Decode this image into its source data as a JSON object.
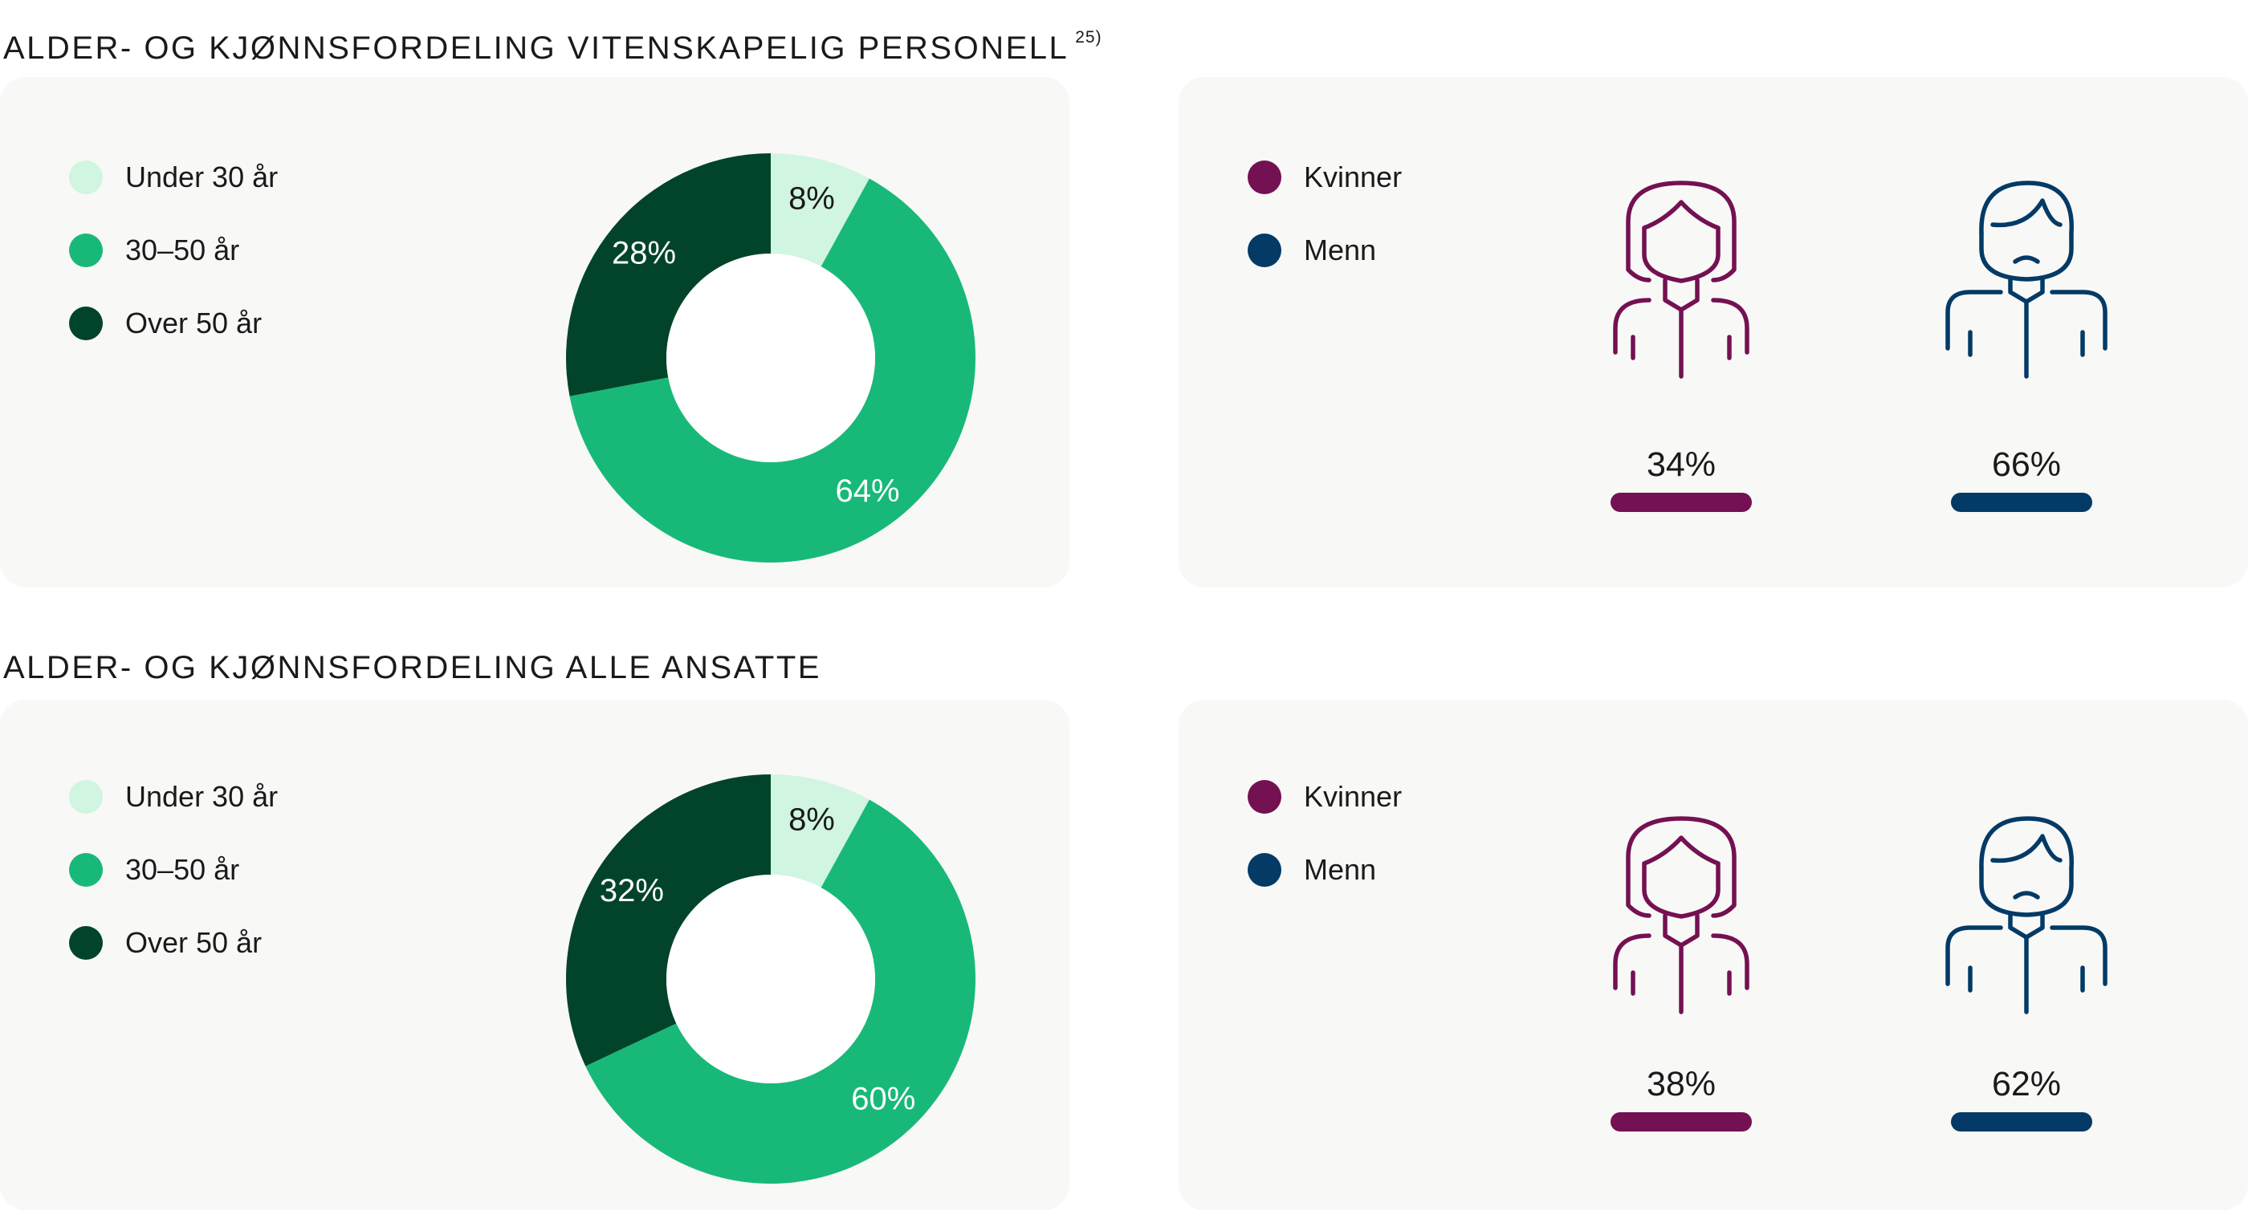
{
  "colors": {
    "under30": "#d0f5e0",
    "age30_50": "#18b978",
    "over50": "#02442a",
    "women": "#741152",
    "men": "#033a66",
    "panel": "#f8f8f7",
    "hole": "#ffffff",
    "dark_text": "#1a1a1a",
    "light_text": "#ffffff"
  },
  "legend_age": [
    "Under 30 år",
    "30–50 år",
    "Over 50 år"
  ],
  "legend_gender": [
    "Kvinner",
    "Menn"
  ],
  "icons": {
    "women": "woman-icon",
    "men": "man-icon"
  },
  "sections": [
    {
      "title": "ALDER- OG KJØNNSFORDELING VITENSKAPELIG PERSONELL",
      "footnote": "25)",
      "labels": {
        "under30": "8%",
        "age30_50": "64%",
        "over50": "28%"
      },
      "women_label": "34%",
      "men_label": "66%"
    },
    {
      "title": "ALDER- OG KJØNNSFORDELING ALLE ANSATTE",
      "footnote": "",
      "labels": {
        "under30": "8%",
        "age30_50": "60%",
        "over50": "32%"
      },
      "women_label": "38%",
      "men_label": "62%"
    }
  ],
  "chart_data": [
    {
      "type": "pie",
      "title": "ALDER- OG KJØNNSFORDELING VITENSKAPELIG PERSONELL",
      "donut": true,
      "categories": [
        "Under 30 år",
        "30–50 år",
        "Over 50 år"
      ],
      "values": [
        8,
        64,
        28
      ],
      "colors": [
        "#d0f5e0",
        "#18b978",
        "#02442a"
      ],
      "legend": "left"
    },
    {
      "type": "bar",
      "title": "ALDER- OG KJØNNSFORDELING VITENSKAPELIG PERSONELL",
      "categories": [
        "Kvinner",
        "Menn"
      ],
      "values": [
        34,
        66
      ],
      "colors": [
        "#741152",
        "#033a66"
      ],
      "legend": "left"
    },
    {
      "type": "pie",
      "title": "ALDER- OG KJØNNSFORDELING ALLE ANSATTE",
      "donut": true,
      "categories": [
        "Under 30 år",
        "30–50 år",
        "Over 50 år"
      ],
      "values": [
        8,
        60,
        32
      ],
      "colors": [
        "#d0f5e0",
        "#18b978",
        "#02442a"
      ],
      "legend": "left"
    },
    {
      "type": "bar",
      "title": "ALDER- OG KJØNNSFORDELING ALLE ANSATTE",
      "categories": [
        "Kvinner",
        "Menn"
      ],
      "values": [
        38,
        62
      ],
      "colors": [
        "#741152",
        "#033a66"
      ],
      "legend": "left"
    }
  ]
}
